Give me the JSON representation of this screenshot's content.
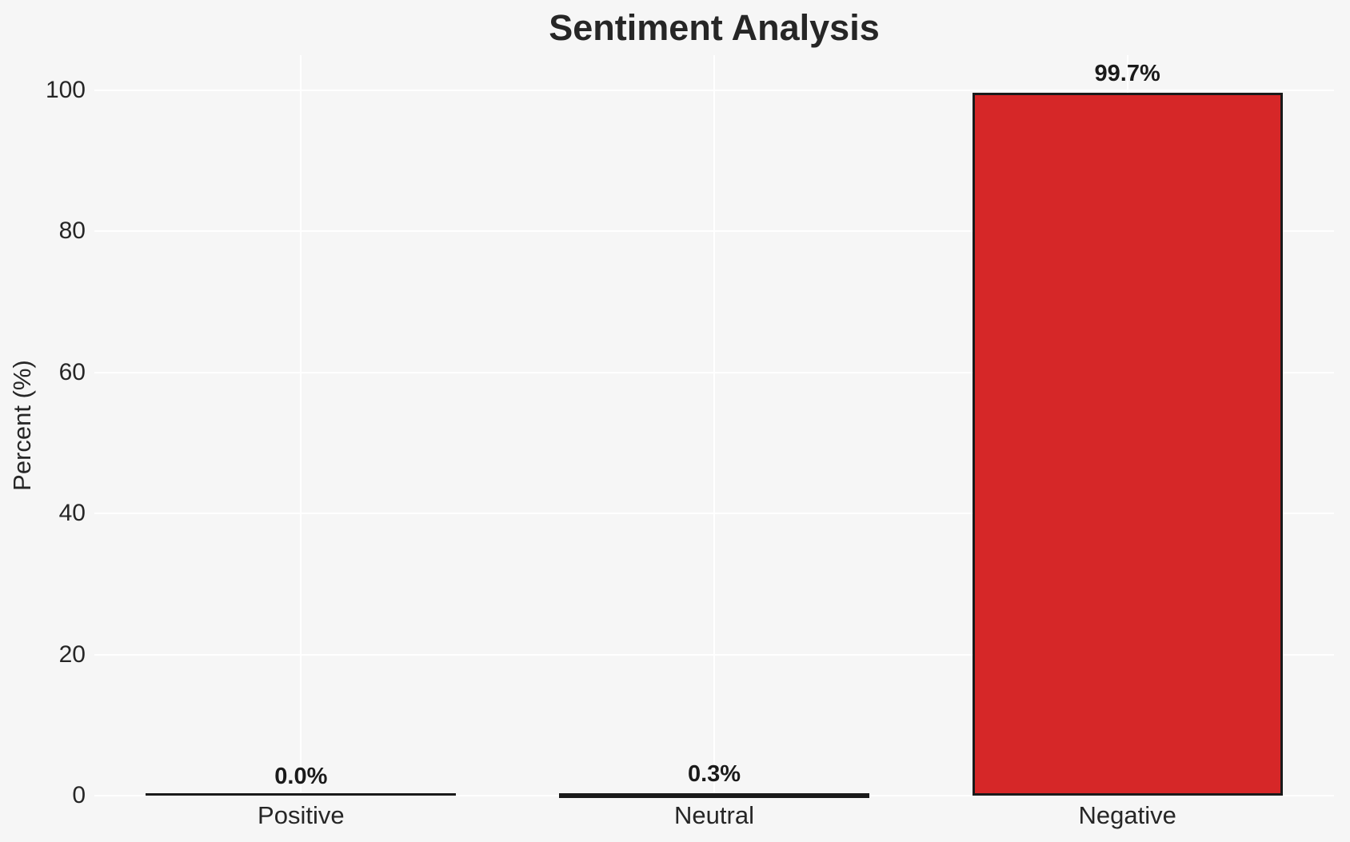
{
  "chart_data": {
    "type": "bar",
    "title": "Sentiment Analysis",
    "xlabel": "",
    "ylabel": "Percent (%)",
    "categories": [
      "Positive",
      "Neutral",
      "Negative"
    ],
    "values": [
      0.0,
      0.3,
      99.7
    ],
    "bar_labels": [
      "0.0%",
      "0.3%",
      "99.7%"
    ],
    "yticks": [
      0,
      20,
      40,
      60,
      80,
      100
    ],
    "ylim": [
      0,
      105
    ],
    "grid": true,
    "legend": false,
    "colors": {
      "bar_fill": "#d62728",
      "bar_edge": "#1a1a1a",
      "background": "#f6f6f6",
      "gridline": "#ffffff",
      "text": "#262626"
    }
  }
}
